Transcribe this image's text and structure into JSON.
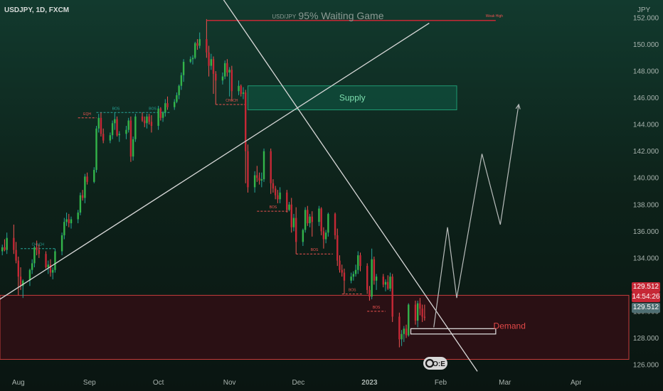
{
  "header": {
    "symbol": "USDJPY, 1D, FXCM"
  },
  "currency": "JPY",
  "chart_title": {
    "symbol_small": "USD/JPY",
    "main": "95% Waiting Game"
  },
  "zones": {
    "supply": {
      "label": "Supply",
      "from": 145.1,
      "to": 146.9,
      "fill": "#0f4a3a",
      "stroke": "#1f9a72",
      "text_color": "#7ee0b0"
    },
    "demand": {
      "label": "Demand",
      "from": 126.4,
      "to": 131.2,
      "fill": "#2a1014",
      "stroke": "#c63c3c",
      "text_color": "#e24848"
    }
  },
  "price_tags": {
    "last": "129.512",
    "countdown": "14:54:26",
    "current": "129.512"
  },
  "colors": {
    "up": "#26a69a",
    "down": "#ef5350",
    "up_body": "#33b44a",
    "down_body": "#c62836",
    "line": "#d8d8d8",
    "axis_text": "#a8b3ae",
    "resistance": "#c62836"
  },
  "logo": {
    "text": "O:E"
  },
  "chart_data": {
    "type": "candlestick",
    "symbol": "USDJPY",
    "timeframe": "1D",
    "source": "FXCM",
    "y_ticks": [
      126,
      128,
      130,
      132,
      134,
      136,
      138,
      140,
      142,
      144,
      146,
      148,
      150,
      152
    ],
    "y_tick_labels": [
      "126.000",
      "128.000",
      "130.000",
      "132.000",
      "134.000",
      "136.000",
      "138.000",
      "140.000",
      "142.000",
      "144.000",
      "146.000",
      "148.000",
      "150.000",
      "152.000"
    ],
    "ylim": [
      125.2,
      152.8
    ],
    "x_labels": [
      {
        "label": "Aug",
        "day": 0
      },
      {
        "label": "Sep",
        "day": 31
      },
      {
        "label": "Oct",
        "day": 61
      },
      {
        "label": "Nov",
        "day": 92
      },
      {
        "label": "Dec",
        "day": 122
      },
      {
        "label": "2023",
        "day": 153
      },
      {
        "label": "Feb",
        "day": 184
      },
      {
        "label": "Mar",
        "day": 212
      },
      {
        "label": "Apr",
        "day": 243
      }
    ],
    "xlim": [
      -8,
      266
    ],
    "candles": [
      [
        -7,
        134.5,
        135.0,
        134.2,
        134.8
      ],
      [
        -6,
        134.8,
        135.4,
        134.5,
        134.6
      ],
      [
        -5,
        134.6,
        135.9,
        134.3,
        135.5
      ],
      [
        -2,
        135.5,
        136.5,
        134.3,
        134.6
      ],
      [
        -1,
        134.6,
        135.2,
        133.6,
        133.8
      ],
      [
        0,
        133.8,
        134.1,
        131.2,
        132.6
      ],
      [
        1,
        132.6,
        133.3,
        131.6,
        131.9
      ],
      [
        2,
        131.9,
        132.4,
        131.0,
        132.3
      ],
      [
        5,
        132.3,
        133.2,
        131.9,
        133.1
      ],
      [
        6,
        133.1,
        133.9,
        132.8,
        133.6
      ],
      [
        7,
        133.6,
        134.9,
        133.3,
        134.8
      ],
      [
        8,
        134.8,
        135.3,
        134.2,
        134.6
      ],
      [
        9,
        134.6,
        135.0,
        134.0,
        134.3
      ],
      [
        12,
        134.3,
        134.5,
        133.2,
        133.3
      ],
      [
        13,
        133.3,
        133.8,
        132.8,
        133.5
      ],
      [
        14,
        133.5,
        133.9,
        132.6,
        132.9
      ],
      [
        15,
        132.9,
        133.3,
        132.4,
        133.1
      ],
      [
        16,
        133.1,
        134.7,
        132.9,
        134.5
      ],
      [
        19,
        134.5,
        135.9,
        134.2,
        135.7
      ],
      [
        20,
        135.7,
        137.0,
        135.4,
        136.7
      ],
      [
        21,
        136.7,
        137.4,
        136.4,
        136.9
      ],
      [
        22,
        136.9,
        137.3,
        136.3,
        136.6
      ],
      [
        23,
        136.6,
        137.1,
        136.2,
        136.9
      ],
      [
        26,
        136.9,
        137.6,
        136.6,
        137.4
      ],
      [
        27,
        137.4,
        138.9,
        137.2,
        138.7
      ],
      [
        28,
        138.7,
        139.1,
        138.3,
        138.5
      ],
      [
        29,
        138.5,
        140.3,
        138.1,
        140.1
      ],
      [
        30,
        140.1,
        140.4,
        139.5,
        139.7
      ],
      [
        33,
        139.7,
        140.8,
        139.6,
        140.6
      ],
      [
        34,
        140.6,
        143.9,
        140.4,
        143.7
      ],
      [
        35,
        143.7,
        144.8,
        143.4,
        144.5
      ],
      [
        36,
        144.5,
        144.9,
        143.1,
        143.3
      ],
      [
        37,
        143.3,
        143.7,
        142.6,
        142.8
      ],
      [
        40,
        142.8,
        143.4,
        142.6,
        143.2
      ],
      [
        41,
        143.2,
        144.3,
        142.9,
        144.1
      ],
      [
        42,
        144.1,
        144.9,
        143.6,
        144.4
      ],
      [
        43,
        144.4,
        144.6,
        143.1,
        143.2
      ],
      [
        44,
        143.2,
        143.5,
        142.7,
        143.3
      ],
      [
        47,
        143.3,
        143.9,
        142.9,
        143.6
      ],
      [
        48,
        143.6,
        144.5,
        143.4,
        144.3
      ],
      [
        49,
        144.3,
        144.6,
        141.2,
        141.6
      ],
      [
        50,
        141.6,
        143.1,
        141.3,
        142.9
      ],
      [
        51,
        142.9,
        144.8,
        142.7,
        144.6
      ],
      [
        54,
        144.6,
        144.9,
        144.2,
        144.3
      ],
      [
        55,
        144.3,
        144.6,
        143.8,
        144.1
      ],
      [
        56,
        144.1,
        144.8,
        143.7,
        144.6
      ],
      [
        57,
        144.6,
        144.8,
        144.0,
        144.2
      ],
      [
        58,
        144.2,
        144.7,
        143.4,
        143.9
      ],
      [
        61,
        143.9,
        145.4,
        143.6,
        145.2
      ],
      [
        62,
        145.2,
        145.3,
        144.3,
        144.5
      ],
      [
        63,
        144.5,
        145.0,
        144.2,
        144.9
      ],
      [
        64,
        144.9,
        145.9,
        144.6,
        145.6
      ],
      [
        65,
        145.6,
        146.1,
        145.1,
        145.3
      ],
      [
        68,
        145.3,
        145.9,
        145.1,
        145.7
      ],
      [
        69,
        145.7,
        146.4,
        145.6,
        146.2
      ],
      [
        70,
        146.2,
        147.0,
        145.9,
        146.9
      ],
      [
        71,
        146.9,
        147.9,
        146.6,
        147.7
      ],
      [
        72,
        147.7,
        148.9,
        147.2,
        148.7
      ],
      [
        75,
        148.7,
        149.1,
        148.6,
        148.9
      ],
      [
        76,
        148.9,
        149.2,
        148.5,
        149.0
      ],
      [
        77,
        149.0,
        150.2,
        148.9,
        150.1
      ],
      [
        78,
        150.1,
        150.4,
        149.6,
        149.9
      ],
      [
        79,
        149.9,
        150.9,
        149.7,
        150.4
      ],
      [
        82,
        150.4,
        151.9,
        149.0,
        149.4
      ],
      [
        83,
        149.4,
        149.9,
        147.6,
        148.4
      ],
      [
        84,
        148.4,
        149.3,
        148.1,
        148.9
      ],
      [
        85,
        148.9,
        149.1,
        146.3,
        147.8
      ],
      [
        86,
        147.8,
        148.0,
        145.5,
        147.3
      ],
      [
        89,
        147.3,
        147.9,
        147.0,
        147.6
      ],
      [
        90,
        147.6,
        148.8,
        147.4,
        148.6
      ],
      [
        91,
        148.6,
        148.9,
        147.6,
        147.9
      ],
      [
        92,
        147.9,
        148.3,
        146.1,
        148.1
      ],
      [
        93,
        148.1,
        148.4,
        145.8,
        146.5
      ],
      [
        96,
        146.5,
        147.3,
        146.2,
        146.9
      ],
      [
        97,
        146.9,
        147.0,
        146.1,
        146.3
      ],
      [
        98,
        146.3,
        146.8,
        145.9,
        146.4
      ],
      [
        99,
        146.4,
        146.6,
        139.6,
        142.0
      ],
      [
        100,
        142.0,
        142.5,
        138.9,
        139.3
      ],
      [
        103,
        139.3,
        140.5,
        138.9,
        140.2
      ],
      [
        104,
        140.2,
        140.9,
        139.7,
        140.0
      ],
      [
        105,
        140.0,
        140.4,
        139.5,
        139.8
      ],
      [
        106,
        139.8,
        140.4,
        139.3,
        139.9
      ],
      [
        107,
        139.9,
        142.2,
        139.7,
        142.0
      ],
      [
        110,
        142.0,
        142.2,
        138.8,
        139.6
      ],
      [
        111,
        139.6,
        139.9,
        138.9,
        139.2
      ],
      [
        112,
        139.2,
        139.4,
        138.4,
        138.7
      ],
      [
        113,
        138.7,
        139.1,
        138.1,
        138.4
      ],
      [
        114,
        138.4,
        139.3,
        138.1,
        138.9
      ],
      [
        117,
        138.9,
        139.1,
        137.4,
        137.6
      ],
      [
        118,
        137.6,
        138.2,
        137.5,
        138.0
      ],
      [
        119,
        138.0,
        138.5,
        135.9,
        136.3
      ],
      [
        120,
        136.3,
        137.3,
        136.0,
        137.0
      ],
      [
        121,
        137.0,
        137.8,
        134.3,
        135.2
      ],
      [
        124,
        135.2,
        136.2,
        134.9,
        136.1
      ],
      [
        125,
        136.1,
        137.8,
        135.9,
        137.6
      ],
      [
        126,
        137.6,
        137.9,
        136.4,
        136.6
      ],
      [
        127,
        136.6,
        137.3,
        136.3,
        137.1
      ],
      [
        128,
        137.1,
        137.5,
        135.6,
        136.7
      ],
      [
        131,
        136.7,
        137.9,
        136.4,
        137.7
      ],
      [
        132,
        137.7,
        137.8,
        135.7,
        136.0
      ],
      [
        133,
        136.0,
        136.3,
        134.7,
        135.4
      ],
      [
        134,
        135.4,
        136.1,
        135.1,
        135.9
      ],
      [
        135,
        135.9,
        137.4,
        135.6,
        137.3
      ],
      [
        138,
        137.3,
        137.4,
        135.4,
        135.7
      ],
      [
        139,
        135.7,
        136.2,
        133.4,
        133.8
      ],
      [
        140,
        133.8,
        134.2,
        132.9,
        133.1
      ],
      [
        141,
        133.1,
        133.5,
        132.6,
        132.9
      ],
      [
        142,
        132.9,
        133.2,
        131.3,
        132.3
      ],
      [
        145,
        132.3,
        132.9,
        132.1,
        132.6
      ],
      [
        146,
        132.6,
        133.0,
        132.3,
        132.8
      ],
      [
        147,
        132.8,
        133.5,
        132.6,
        133.1
      ],
      [
        148,
        133.1,
        134.5,
        132.8,
        134.2
      ],
      [
        149,
        134.2,
        134.4,
        133.0,
        133.4
      ],
      [
        152,
        133.4,
        133.6,
        131.3,
        131.6
      ],
      [
        153,
        131.6,
        131.9,
        130.8,
        131.1
      ],
      [
        154,
        131.1,
        134.7,
        130.9,
        133.9
      ],
      [
        155,
        133.9,
        134.1,
        132.0,
        132.3
      ],
      [
        156,
        132.3,
        132.8,
        131.6,
        132.6
      ],
      [
        159,
        132.6,
        132.8,
        131.8,
        132.0
      ],
      [
        160,
        132.0,
        132.4,
        131.5,
        132.2
      ],
      [
        161,
        132.2,
        132.7,
        131.6,
        131.7
      ],
      [
        162,
        131.7,
        132.9,
        131.5,
        132.6
      ],
      [
        163,
        132.6,
        132.8,
        129.2,
        129.6
      ],
      [
        166,
        129.6,
        129.9,
        127.3,
        127.9
      ],
      [
        167,
        127.9,
        128.6,
        127.4,
        128.3
      ],
      [
        168,
        128.3,
        128.9,
        127.7,
        128.7
      ],
      [
        169,
        128.7,
        129.0,
        128.0,
        128.2
      ],
      [
        170,
        128.2,
        130.6,
        128.1,
        130.5
      ],
      [
        173,
        130.5,
        130.8,
        129.0,
        129.3
      ],
      [
        174,
        129.3,
        130.8,
        128.8,
        130.6
      ],
      [
        175,
        130.6,
        131.0,
        129.7,
        130.2
      ],
      [
        176,
        130.2,
        130.5,
        129.2,
        129.6
      ],
      [
        177,
        129.6,
        130.5,
        129.3,
        129.5
      ]
    ],
    "supply_zone": [
      145.1,
      146.9
    ],
    "demand_zone": [
      126.4,
      131.2
    ],
    "horizontal_levels": [
      {
        "price": 151.8,
        "from_day": 82,
        "to_day": 208,
        "label": "Weak High"
      }
    ],
    "trendlines": [
      {
        "name": "ascending",
        "points": [
          [
            -9,
            130.8
          ],
          [
            179,
            151.6
          ]
        ]
      },
      {
        "name": "descending",
        "points": [
          [
            61,
            160.5
          ],
          [
            200,
            125.5
          ]
        ]
      }
    ],
    "projection_path": [
      [
        181,
        128.8
      ],
      [
        187,
        136.3
      ],
      [
        191,
        131.0
      ],
      [
        202,
        141.8
      ],
      [
        210,
        136.5
      ],
      [
        218,
        145.5
      ]
    ],
    "consolidation_box": {
      "from_day": 171,
      "to_day": 208,
      "price_low": 128.3,
      "price_high": 128.7
    },
    "structure_lines": [
      {
        "from_day": 1,
        "to_day": 16,
        "price": 134.7,
        "label": "CHoCH",
        "color": "#26a69a"
      },
      {
        "from_day": 34,
        "to_day": 51,
        "price": 144.9,
        "label": "BOS",
        "color": "#26a69a"
      },
      {
        "from_day": 51,
        "to_day": 66,
        "price": 144.9,
        "label": "BOS",
        "color": "#26a69a"
      },
      {
        "from_day": 86,
        "to_day": 100,
        "price": 145.5,
        "label": "CHoCH",
        "color": "#ef5350"
      },
      {
        "from_day": 104,
        "to_day": 118,
        "price": 137.5,
        "label": "BOS",
        "color": "#ef5350"
      },
      {
        "from_day": 121,
        "to_day": 137,
        "price": 134.3,
        "label": "BOS",
        "color": "#ef5350"
      },
      {
        "from_day": 141,
        "to_day": 150,
        "price": 131.3,
        "label": "BOS",
        "color": "#ef5350"
      },
      {
        "from_day": 152,
        "to_day": 160,
        "price": 130.0,
        "label": "BOS",
        "color": "#ef5350"
      },
      {
        "from_day": 26,
        "to_day": 34,
        "price": 144.5,
        "label": "EQH",
        "color": "#ef5350"
      }
    ]
  }
}
